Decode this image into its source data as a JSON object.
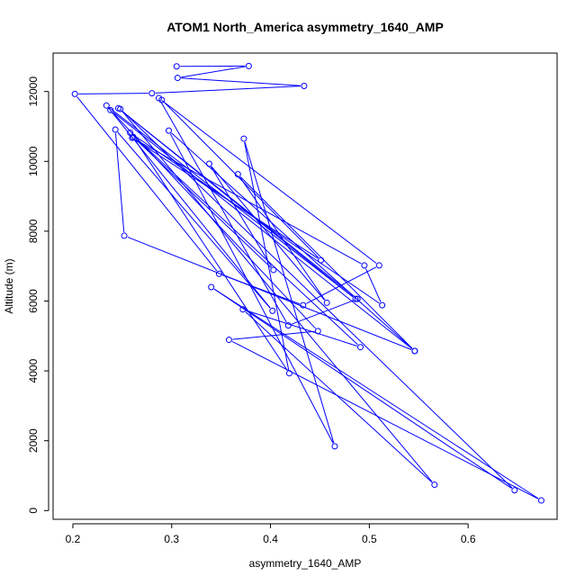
{
  "chart_data": {
    "type": "line",
    "title": "ATOM1 North_America asymmetry_1640_AMP",
    "xlabel": "asymmetry_1640_AMP",
    "ylabel": "Altitude (m)",
    "xlim": [
      0.18,
      0.69
    ],
    "ylim": [
      -250,
      13100
    ],
    "xticks": [
      "0.2",
      "0.3",
      "0.4",
      "0.5",
      "0.6"
    ],
    "yticks": [
      "0",
      "2000",
      "4000",
      "6000",
      "8000",
      "10000",
      "12000"
    ],
    "series": [
      {
        "color": "#0000ff",
        "marker": "open-circle",
        "points": [
          [
            0.305,
            12720
          ],
          [
            0.378,
            12730
          ],
          [
            0.306,
            12390
          ],
          [
            0.434,
            12160
          ],
          [
            0.28,
            11950
          ],
          [
            0.202,
            11930
          ],
          [
            0.348,
            6780
          ],
          [
            0.433,
            5880
          ],
          [
            0.51,
            7020
          ],
          [
            0.287,
            11810
          ],
          [
            0.418,
            5300
          ],
          [
            0.488,
            6060
          ],
          [
            0.246,
            11520
          ],
          [
            0.486,
            6060
          ],
          [
            0.234,
            11600
          ],
          [
            0.402,
            5720
          ],
          [
            0.243,
            10910
          ],
          [
            0.252,
            7870
          ],
          [
            0.546,
            4570
          ],
          [
            0.297,
            10880
          ],
          [
            0.465,
            1840
          ],
          [
            0.373,
            10650
          ],
          [
            0.419,
            3930
          ],
          [
            0.261,
            10700
          ],
          [
            0.403,
            6890
          ],
          [
            0.338,
            9930
          ],
          [
            0.457,
            5950
          ],
          [
            0.367,
            9630
          ],
          [
            0.546,
            4570
          ],
          [
            0.238,
            11470
          ],
          [
            0.448,
            5140
          ],
          [
            0.358,
            4890
          ],
          [
            0.674,
            290
          ],
          [
            0.34,
            6400
          ],
          [
            0.647,
            580
          ],
          [
            0.248,
            11500
          ],
          [
            0.566,
            740
          ],
          [
            0.372,
            5760
          ],
          [
            0.491,
            4680
          ],
          [
            0.258,
            10820
          ],
          [
            0.513,
            5880
          ],
          [
            0.495,
            7020
          ],
          [
            0.26,
            10670
          ],
          [
            0.451,
            7170
          ],
          [
            0.29,
            11760
          ]
        ]
      }
    ]
  }
}
